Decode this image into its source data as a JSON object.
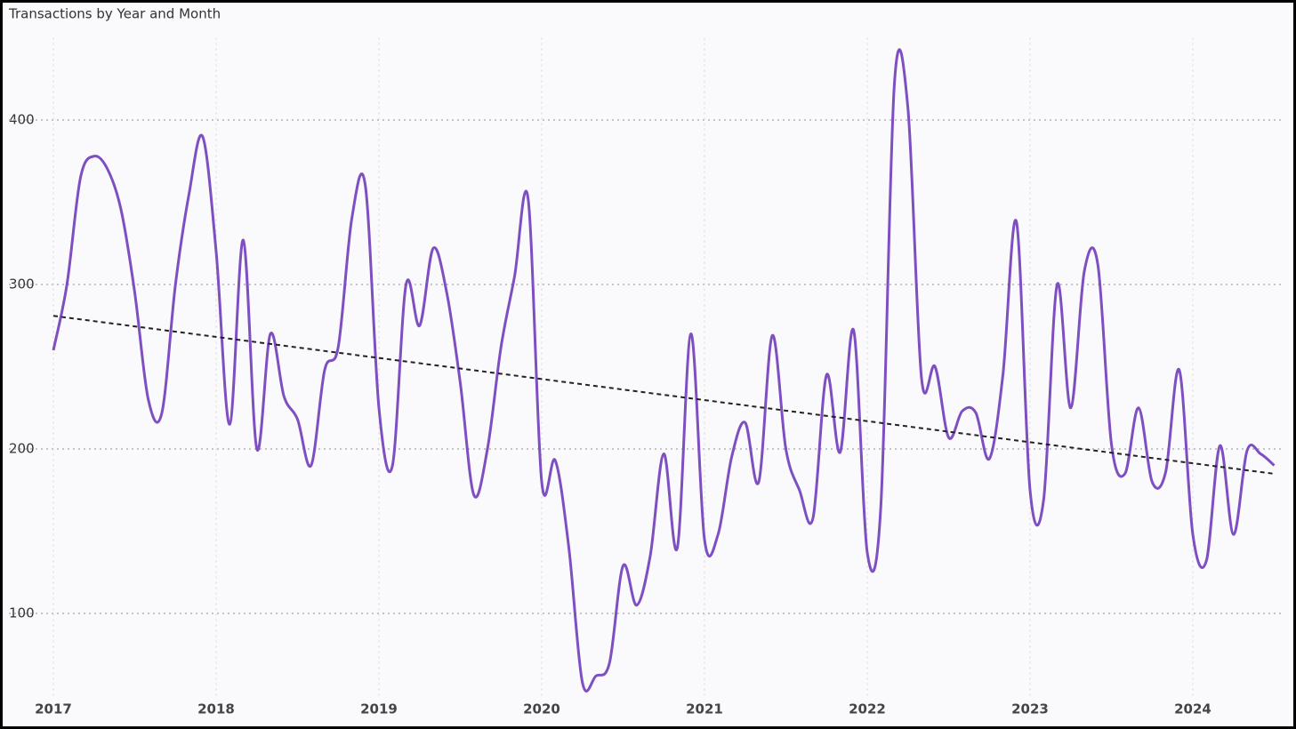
{
  "chart_data": {
    "type": "line",
    "title": "Transactions by Year and Month",
    "categories": [
      "2017",
      null,
      null,
      null,
      null,
      null,
      null,
      null,
      null,
      null,
      null,
      null,
      "2018",
      null,
      null,
      null,
      null,
      null,
      null,
      null,
      null,
      null,
      null,
      null,
      "2019",
      null,
      null,
      null,
      null,
      null,
      null,
      null,
      null,
      null,
      null,
      null,
      "2020",
      null,
      null,
      null,
      null,
      null,
      null,
      null,
      null,
      null,
      null,
      null,
      "2021",
      null,
      null,
      null,
      null,
      null,
      null,
      null,
      null,
      null,
      null,
      null,
      "2022",
      null,
      null,
      null,
      null,
      null,
      null,
      null,
      null,
      null,
      null,
      null,
      "2023",
      null,
      null,
      null,
      null,
      null,
      null,
      null,
      null,
      null,
      null,
      null,
      "2024",
      null,
      null,
      null,
      null,
      null,
      null
    ],
    "series": [
      {
        "color": "#7e4fc1",
        "values": [
          260,
          300,
          365,
          378,
          370,
          345,
          295,
          230,
          222,
          300,
          355,
          390,
          320,
          215,
          327,
          200,
          270,
          232,
          218,
          190,
          248,
          262,
          340,
          360,
          225,
          190,
          300,
          275,
          322,
          295,
          240,
          172,
          200,
          262,
          305,
          352,
          180,
          193,
          140,
          58,
          62,
          70,
          129,
          105,
          135,
          197,
          140,
          270,
          145,
          148,
          195,
          216,
          180,
          269,
          200,
          175,
          158,
          245,
          198,
          272,
          137,
          165,
          422,
          407,
          243,
          250,
          207,
          223,
          222,
          194,
          245,
          338,
          175,
          169,
          300,
          225,
          308,
          312,
          203,
          185,
          225,
          180,
          186,
          248,
          148,
          132,
          202,
          148,
          199,
          197,
          190
        ]
      }
    ],
    "ylim": [
      50,
      450
    ],
    "yticks": [
      100,
      200,
      300,
      400
    ],
    "grid": true,
    "trend_line": true,
    "smooth": true
  }
}
